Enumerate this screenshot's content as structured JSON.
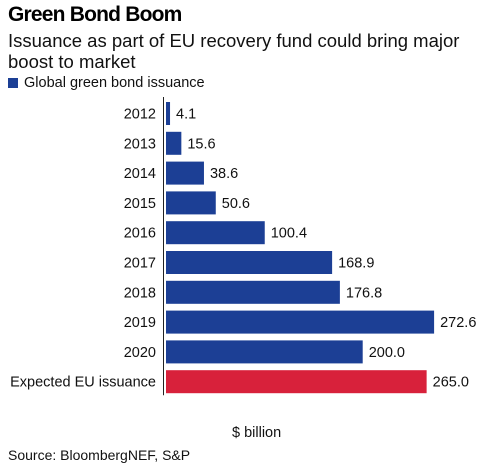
{
  "header": {
    "title": "Green Bond Boom",
    "subtitle": "Issuance as part of EU recovery fund could bring major boost to market"
  },
  "legend": {
    "label": "Global green bond issuance"
  },
  "footer": {
    "unit": "$ billion",
    "source": "Source: BloombergNEF, S&P"
  },
  "colors": {
    "series": "#1c3f95",
    "highlight": "#d8213b"
  },
  "chart_data": {
    "type": "bar",
    "orientation": "horizontal",
    "categories": [
      "2012",
      "2013",
      "2014",
      "2015",
      "2016",
      "2017",
      "2018",
      "2019",
      "2020",
      "Expected EU issuance"
    ],
    "values": [
      4.1,
      15.6,
      38.6,
      50.6,
      100.4,
      168.9,
      176.8,
      272.6,
      200.0,
      265.0
    ],
    "value_labels": [
      "4.1",
      "15.6",
      "38.6",
      "50.6",
      "100.4",
      "168.9",
      "176.8",
      "272.6",
      "200.0",
      "265.0"
    ],
    "highlight_index": 9,
    "series": [
      {
        "name": "Global green bond issuance"
      }
    ],
    "xlabel": "$ billion",
    "grid": false,
    "legend_position": "top-left"
  }
}
